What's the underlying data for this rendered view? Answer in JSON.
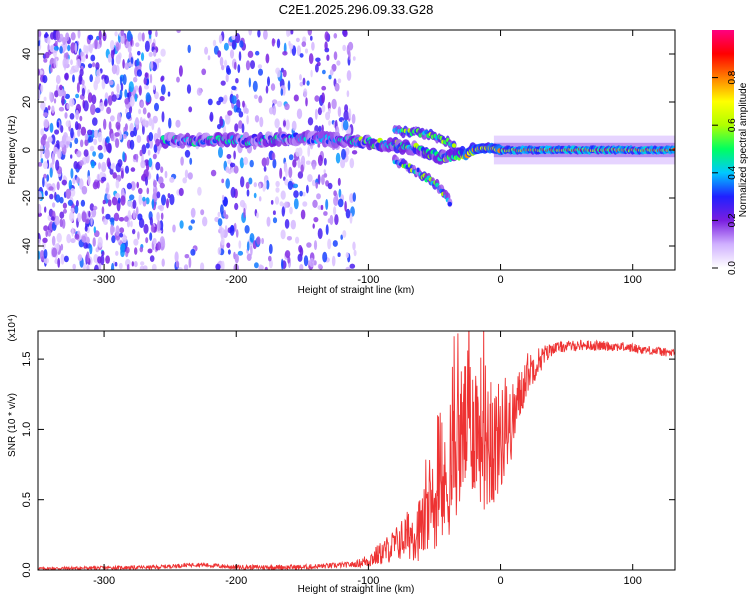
{
  "title": "C2E1.2025.296.09.33.G28",
  "colors": {
    "line": "#ee3333",
    "axis": "#000000",
    "background": "#ffffff"
  },
  "chart_data": [
    {
      "type": "heatmap",
      "title": "C2E1.2025.296.09.33.G28",
      "xlabel": "Height of straight line (km)",
      "ylabel": "Frequency (Hz)",
      "xlim": [
        -350,
        132
      ],
      "ylim": [
        -50,
        50
      ],
      "x_ticks": [
        -300,
        -200,
        -100,
        0,
        100
      ],
      "x_tick_labels": [
        "-300",
        "-200",
        "-100",
        "0",
        "100"
      ],
      "y_ticks": [
        -40,
        -20,
        0,
        20,
        40
      ],
      "y_tick_labels": [
        "-40",
        "-20",
        "0",
        "20",
        "40"
      ],
      "colorbar": {
        "label": "Normalized spectral amplitude",
        "range": [
          0,
          1
        ],
        "ticks": [
          0.0,
          0.2,
          0.4,
          0.6,
          0.8
        ],
        "tick_labels": [
          "0.0",
          "0.2",
          "0.4",
          "0.6",
          "0.8"
        ],
        "colormap": [
          "#ffffff",
          "#d0b0ff",
          "#7a1ee0",
          "#2020ff",
          "#00c8ff",
          "#00ff60",
          "#b0ff00",
          "#ffff00",
          "#ff8000",
          "#ff0000",
          "#ff0080"
        ]
      },
      "features": {
        "noise_region_km": [
          -350,
          -110
        ],
        "gap_km": [
          -255,
          -215
        ],
        "trace_start_km": -255,
        "trace_center_freq_hz": [
          [
            -255,
            4
          ],
          [
            -200,
            4
          ],
          [
            -150,
            5
          ],
          [
            -120,
            4
          ],
          [
            -100,
            3
          ],
          [
            -80,
            2
          ],
          [
            -60,
            0
          ],
          [
            -45,
            -3
          ],
          [
            -30,
            -2
          ],
          [
            -20,
            0
          ],
          [
            -10,
            1
          ],
          [
            0,
            0
          ],
          [
            132,
            0
          ]
        ],
        "branches_hz": [
          [
            [
              -80,
              8
            ],
            [
              -60,
              7
            ],
            [
              -50,
              6
            ],
            [
              -35,
              2
            ]
          ],
          [
            [
              -80,
              -4
            ],
            [
              -60,
              -10
            ],
            [
              -45,
              -16
            ],
            [
              -38,
              -22
            ]
          ]
        ]
      }
    },
    {
      "type": "line",
      "xlabel": "Height of straight line (km)",
      "ylabel": "SNR (10 * v/v)",
      "y_scale_label": "(x10⁴)",
      "xlim": [
        -350,
        132
      ],
      "ylim": [
        0,
        1.7
      ],
      "x_ticks": [
        -300,
        -200,
        -100,
        0,
        100
      ],
      "x_tick_labels": [
        "-300",
        "-200",
        "-100",
        "0",
        "100"
      ],
      "y_ticks": [
        0.0,
        0.5,
        1.0,
        1.5
      ],
      "y_tick_labels": [
        "0.0",
        "0.5",
        "1.0",
        "1.5"
      ],
      "series": [
        {
          "name": "SNR",
          "envelope": [
            [
              -350,
              0.01
            ],
            [
              -260,
              0.02
            ],
            [
              -230,
              0.04
            ],
            [
              -200,
              0.02
            ],
            [
              -150,
              0.02
            ],
            [
              -110,
              0.04
            ],
            [
              -100,
              0.07
            ],
            [
              -90,
              0.12
            ],
            [
              -80,
              0.18
            ],
            [
              -70,
              0.25
            ],
            [
              -60,
              0.3
            ],
            [
              -50,
              0.45
            ],
            [
              -40,
              0.6
            ],
            [
              -35,
              0.8
            ],
            [
              -30,
              0.95
            ],
            [
              -25,
              1.05
            ],
            [
              -20,
              1.05
            ],
            [
              -15,
              1.0
            ],
            [
              -10,
              0.95
            ],
            [
              -5,
              0.9
            ],
            [
              0,
              0.95
            ],
            [
              5,
              0.95
            ],
            [
              10,
              1.1
            ],
            [
              15,
              1.25
            ],
            [
              20,
              1.4
            ],
            [
              30,
              1.5
            ],
            [
              40,
              1.58
            ],
            [
              60,
              1.6
            ],
            [
              90,
              1.59
            ],
            [
              132,
              1.54
            ]
          ],
          "noise_amplitude": [
            [
              -350,
              0.01
            ],
            [
              -110,
              0.02
            ],
            [
              -80,
              0.12
            ],
            [
              -50,
              0.3
            ],
            [
              -30,
              0.5
            ],
            [
              -10,
              0.55
            ],
            [
              5,
              0.3
            ],
            [
              20,
              0.15
            ],
            [
              40,
              0.04
            ],
            [
              132,
              0.03
            ]
          ]
        }
      ]
    }
  ]
}
